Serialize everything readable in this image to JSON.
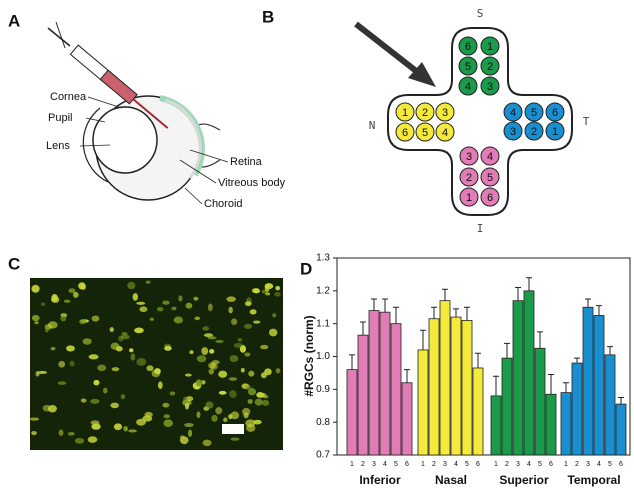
{
  "panels": {
    "A": {
      "label": "A",
      "labels": [
        "Cornea",
        "Pupil",
        "Lens",
        "Retina",
        "Vitreous body",
        "Choroid"
      ]
    },
    "B": {
      "label": "B",
      "directions": {
        "S": "S",
        "N": "N",
        "T": "T",
        "I": "I"
      },
      "petals": [
        {
          "name": "superior",
          "color": "#1a9a4a",
          "rows": [
            [
              "6",
              "1"
            ],
            [
              "5",
              "2"
            ],
            [
              "4",
              "3"
            ]
          ]
        },
        {
          "name": "nasal",
          "color": "#f4ea3c",
          "rows": [
            [
              "1",
              "2",
              "3"
            ],
            [
              "6",
              "5",
              "4"
            ]
          ]
        },
        {
          "name": "temporal",
          "color": "#1a8fd0",
          "rows": [
            [
              "4",
              "5",
              "6"
            ],
            [
              "3",
              "2",
              "1"
            ]
          ]
        },
        {
          "name": "inferior",
          "color": "#e27cb6",
          "rows": [
            [
              "3",
              "4"
            ],
            [
              "2",
              "5"
            ],
            [
              "1",
              "6"
            ]
          ]
        }
      ]
    },
    "C": {
      "label": "C"
    },
    "D": {
      "label": "D"
    }
  },
  "chart_data": {
    "type": "bar",
    "ylabel": "#RGCs (norm)",
    "ylim": [
      0.7,
      1.3
    ],
    "yticks": [
      0.7,
      0.8,
      0.9,
      {
        "value": 1,
        "label": "1.0"
      },
      1.1,
      1.2,
      1.3
    ],
    "groups": [
      {
        "name": "Inferior",
        "color": "#e27cb6",
        "labels": [
          "1",
          "2",
          "3",
          "4",
          "5",
          "6"
        ],
        "values": [
          0.96,
          1.065,
          1.14,
          1.135,
          1.1,
          0.92
        ],
        "errors": [
          0.045,
          0.04,
          0.035,
          0.04,
          0.05,
          0.04
        ]
      },
      {
        "name": "Nasal",
        "color": "#f4ea3c",
        "labels": [
          "1",
          "2",
          "3",
          "4",
          "5",
          "6"
        ],
        "values": [
          1.02,
          1.115,
          1.17,
          1.12,
          1.11,
          0.965
        ],
        "errors": [
          0.06,
          0.035,
          0.035,
          0.025,
          0.04,
          0.045
        ]
      },
      {
        "name": "Superior",
        "color": "#1a9a4a",
        "labels": [
          "1",
          "2",
          "3",
          "4",
          "5",
          "6"
        ],
        "values": [
          0.88,
          0.995,
          1.17,
          1.2,
          1.025,
          0.885
        ],
        "errors": [
          0.06,
          0.045,
          0.04,
          0.04,
          0.05,
          0.06
        ]
      },
      {
        "name": "Temporal",
        "color": "#1a8fd0",
        "labels": [
          "1",
          "2",
          "3",
          "4",
          "5",
          "6"
        ],
        "values": [
          0.89,
          0.98,
          1.15,
          1.125,
          1.005,
          0.855
        ],
        "errors": [
          0.03,
          0.015,
          0.025,
          0.03,
          0.025,
          0.02
        ]
      }
    ]
  }
}
